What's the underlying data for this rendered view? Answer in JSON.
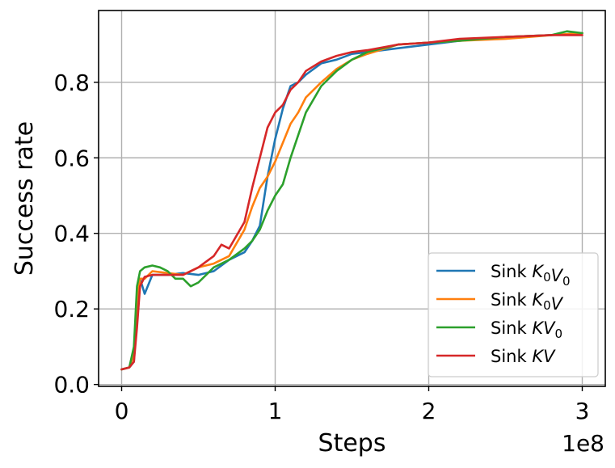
{
  "chart_data": {
    "type": "line",
    "xlabel": "Steps",
    "ylabel": "Success rate",
    "x_offset_text": "1e8",
    "xlim": [
      -0.15,
      3.15
    ],
    "ylim": [
      -0.005,
      0.99
    ],
    "x_ticks": [
      0,
      1,
      2,
      3
    ],
    "x_tick_labels": [
      "0",
      "1",
      "2",
      "3"
    ],
    "y_ticks": [
      0.0,
      0.2,
      0.4,
      0.6,
      0.8
    ],
    "y_tick_labels": [
      "0.0",
      "0.2",
      "0.4",
      "0.6",
      "0.8"
    ],
    "grid": true,
    "legend_position": "lower-right",
    "series": [
      {
        "name": "Sink K0V0",
        "legend": {
          "base": "Sink ",
          "parts": [
            {
              "t": "K",
              "i": true
            },
            {
              "t": "0",
              "sub": true
            },
            {
              "t": "V",
              "i": true
            },
            {
              "t": "0",
              "sub": true
            }
          ]
        },
        "color": "#1f77b4",
        "x": [
          0,
          0.05,
          0.08,
          0.1,
          0.12,
          0.15,
          0.2,
          0.3,
          0.4,
          0.5,
          0.6,
          0.7,
          0.8,
          0.85,
          0.9,
          0.95,
          1.0,
          1.05,
          1.1,
          1.15,
          1.2,
          1.3,
          1.4,
          1.5,
          1.6,
          1.8,
          2.0,
          2.2,
          2.5,
          2.8,
          3.0
        ],
        "y": [
          0.04,
          0.045,
          0.06,
          0.2,
          0.28,
          0.24,
          0.29,
          0.29,
          0.295,
          0.29,
          0.3,
          0.33,
          0.35,
          0.38,
          0.42,
          0.55,
          0.65,
          0.73,
          0.79,
          0.8,
          0.82,
          0.85,
          0.86,
          0.875,
          0.88,
          0.89,
          0.9,
          0.91,
          0.92,
          0.925,
          0.93
        ]
      },
      {
        "name": "Sink K0V",
        "legend": {
          "base": "Sink ",
          "parts": [
            {
              "t": "K",
              "i": true
            },
            {
              "t": "0",
              "sub": true
            },
            {
              "t": "V",
              "i": true
            }
          ]
        },
        "color": "#ff7f0e",
        "x": [
          0,
          0.05,
          0.08,
          0.1,
          0.12,
          0.15,
          0.2,
          0.3,
          0.4,
          0.5,
          0.6,
          0.7,
          0.8,
          0.85,
          0.9,
          0.95,
          1.0,
          1.05,
          1.1,
          1.15,
          1.2,
          1.3,
          1.4,
          1.5,
          1.6,
          1.8,
          2.0,
          2.2,
          2.5,
          2.8,
          3.0
        ],
        "y": [
          0.04,
          0.045,
          0.08,
          0.22,
          0.28,
          0.28,
          0.3,
          0.295,
          0.29,
          0.31,
          0.32,
          0.34,
          0.41,
          0.47,
          0.52,
          0.55,
          0.59,
          0.64,
          0.69,
          0.72,
          0.76,
          0.8,
          0.835,
          0.86,
          0.875,
          0.9,
          0.905,
          0.91,
          0.915,
          0.925,
          0.93
        ]
      },
      {
        "name": "Sink KV0",
        "legend": {
          "base": "Sink ",
          "parts": [
            {
              "t": "K",
              "i": true
            },
            {
              "t": "V",
              "i": true
            },
            {
              "t": "0",
              "sub": true
            }
          ]
        },
        "color": "#2ca02c",
        "x": [
          0,
          0.05,
          0.08,
          0.1,
          0.12,
          0.15,
          0.2,
          0.25,
          0.3,
          0.35,
          0.4,
          0.45,
          0.5,
          0.6,
          0.7,
          0.8,
          0.85,
          0.9,
          0.95,
          1.0,
          1.05,
          1.1,
          1.15,
          1.2,
          1.3,
          1.4,
          1.5,
          1.6,
          1.8,
          2.0,
          2.2,
          2.5,
          2.8,
          2.9,
          3.0
        ],
        "y": [
          0.04,
          0.045,
          0.1,
          0.26,
          0.3,
          0.31,
          0.315,
          0.31,
          0.3,
          0.28,
          0.28,
          0.26,
          0.27,
          0.31,
          0.33,
          0.36,
          0.38,
          0.41,
          0.46,
          0.5,
          0.53,
          0.6,
          0.66,
          0.72,
          0.79,
          0.83,
          0.86,
          0.88,
          0.9,
          0.905,
          0.91,
          0.92,
          0.925,
          0.935,
          0.93
        ]
      },
      {
        "name": "Sink KV",
        "legend": {
          "base": "Sink ",
          "parts": [
            {
              "t": "K",
              "i": true
            },
            {
              "t": "V",
              "i": true
            }
          ]
        },
        "color": "#d62728",
        "x": [
          0,
          0.05,
          0.08,
          0.1,
          0.12,
          0.15,
          0.2,
          0.3,
          0.4,
          0.5,
          0.6,
          0.65,
          0.7,
          0.8,
          0.85,
          0.9,
          0.95,
          1.0,
          1.05,
          1.1,
          1.15,
          1.2,
          1.3,
          1.4,
          1.5,
          1.6,
          1.8,
          2.0,
          2.2,
          2.5,
          2.8,
          3.0
        ],
        "y": [
          0.04,
          0.045,
          0.06,
          0.15,
          0.26,
          0.285,
          0.29,
          0.29,
          0.29,
          0.31,
          0.34,
          0.37,
          0.36,
          0.43,
          0.52,
          0.6,
          0.68,
          0.72,
          0.74,
          0.78,
          0.8,
          0.83,
          0.855,
          0.87,
          0.88,
          0.885,
          0.9,
          0.905,
          0.915,
          0.92,
          0.925,
          0.925
        ]
      }
    ]
  }
}
